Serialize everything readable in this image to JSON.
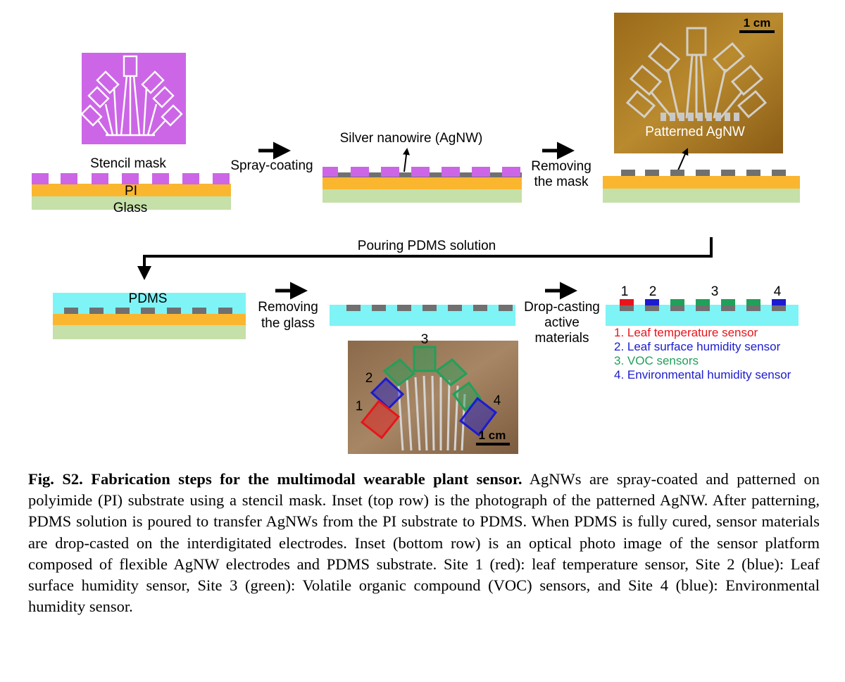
{
  "figure": {
    "colors": {
      "stencil": "#cc66e6",
      "pi": "#fbb62f",
      "glass": "#c5e0a8",
      "agnw": "#707070",
      "pdms": "#7ef4f6",
      "site_red": "#e8141b",
      "site_blue": "#1b1bd0",
      "site_green": "#21a05a"
    },
    "top_row": {
      "stencil_mask": "Stencil mask",
      "pi": "PI",
      "glass": "Glass",
      "spray_coating": "Spray-coating",
      "silver_nanowire": "Silver nanowire (AgNW)",
      "removing_mask_1": "Removing",
      "removing_mask_2": "the mask",
      "patterned_agnw": "Patterned AgNW",
      "scale_bar": "1 cm"
    },
    "connector": {
      "pouring_pdms": "Pouring PDMS solution"
    },
    "bottom_row": {
      "pdms": "PDMS",
      "removing_glass_1": "Removing",
      "removing_glass_2": "the glass",
      "drop_casting_1": "Drop-casting",
      "drop_casting_2": "active",
      "drop_casting_3": "materials",
      "site_numbers": [
        "1",
        "2",
        "3",
        "4"
      ],
      "photo_scale_bar": "1 cm"
    },
    "legend": [
      {
        "text": "1. Leaf temperature sensor",
        "color": "#e8141b"
      },
      {
        "text": "2. Leaf surface humidity sensor",
        "color": "#1b1bd0"
      },
      {
        "text": "3. VOC sensors",
        "color": "#21a05a"
      },
      {
        "text": "4. Environmental humidity sensor",
        "color": "#1b1bd0"
      }
    ]
  },
  "caption": {
    "bold": "Fig. S2. Fabrication steps for the multimodal wearable plant sensor.",
    "body": " AgNWs are spray-coated and patterned on polyimide (PI) substrate using a stencil mask. Inset (top row) is the photograph of the patterned AgNW. After patterning, PDMS solution is poured to transfer AgNWs from the PI substrate to PDMS. When PDMS is fully cured, sensor materials are drop-casted on the interdigitated electrodes. Inset (bottom row) is an optical photo image of the sensor platform composed of flexible AgNW electrodes and PDMS substrate. Site 1 (red): leaf temperature sensor, Site 2 (blue): Leaf surface humidity sensor, Site 3 (green): Volatile organic compound (VOC) sensors, and Site 4 (blue): Environmental humidity sensor."
  }
}
